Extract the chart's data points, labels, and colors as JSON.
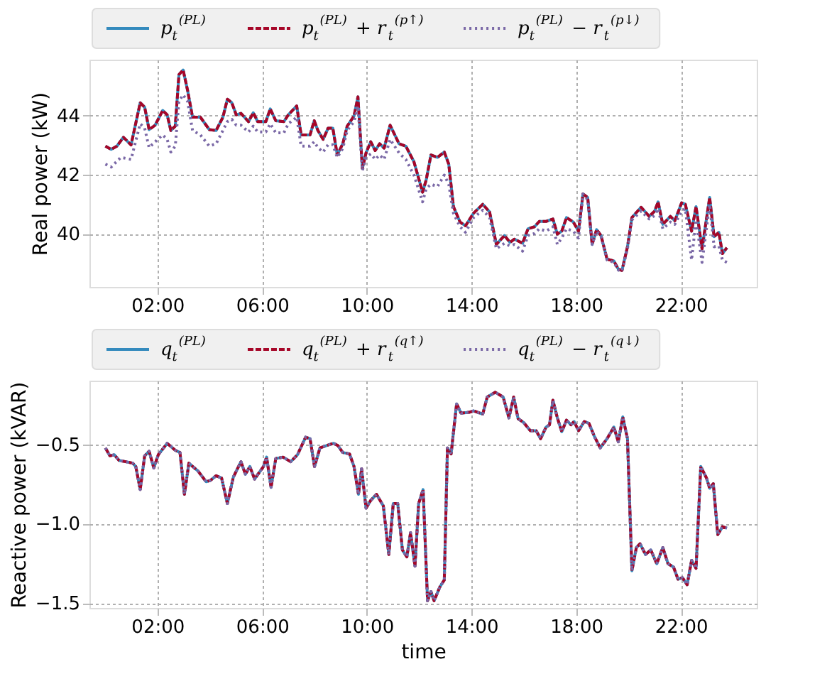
{
  "chart_data": [
    {
      "type": "line",
      "ylabel": "Real power (kW)",
      "xlim": [
        -0.6,
        24.9
      ],
      "ylim": [
        38.2,
        45.9
      ],
      "yticks": [
        40,
        42,
        44
      ],
      "xticks": [
        {
          "value": 2,
          "label": "02:00"
        },
        {
          "value": 6,
          "label": "06:00"
        },
        {
          "value": 10,
          "label": "10:00"
        },
        {
          "value": 14,
          "label": "14:00"
        },
        {
          "value": 18,
          "label": "18:00"
        },
        {
          "value": 22,
          "label": "22:00"
        }
      ],
      "grid": true,
      "legend": "top",
      "series": [
        {
          "name": "p$_{t}$$^{(PL)}$",
          "color": "#348abd",
          "line_style": "solid",
          "x": [
            0.01,
            0.23,
            0.45,
            0.7,
            0.99,
            1.34,
            1.51,
            1.68,
            1.91,
            2.2,
            2.37,
            2.51,
            2.68,
            2.82,
            2.98,
            3.15,
            3.34,
            3.64,
            3.98,
            4.24,
            4.5,
            4.67,
            4.84,
            5.01,
            5.19,
            5.48,
            5.66,
            5.83,
            6.14,
            6.31,
            6.52,
            6.83,
            7.0,
            7.32,
            7.49,
            7.83,
            7.99,
            8.13,
            8.33,
            8.52,
            8.7,
            8.87,
            9.08,
            9.25,
            9.51,
            9.66,
            9.83,
            9.97,
            10.15,
            10.32,
            10.49,
            10.66,
            10.89,
            11.23,
            11.49,
            11.8,
            12.13,
            12.27,
            12.45,
            12.7,
            12.96,
            13.13,
            13.31,
            13.56,
            13.77,
            14.08,
            14.43,
            14.69,
            14.95,
            15.26,
            15.47,
            15.64,
            15.95,
            16.16,
            16.41,
            16.59,
            16.85,
            17.11,
            17.28,
            17.45,
            17.63,
            17.89,
            18.09,
            18.26,
            18.44,
            18.61,
            18.78,
            18.95,
            19.18,
            19.44,
            19.61,
            19.75,
            19.96,
            20.13,
            20.48,
            20.79,
            21.0,
            21.13,
            21.31,
            21.6,
            21.77,
            22.03,
            22.17,
            22.41,
            22.58,
            22.81,
            23.1,
            23.27,
            23.45,
            23.59,
            23.76
          ],
          "values": [
            42.97,
            42.86,
            42.97,
            43.27,
            43.01,
            44.44,
            44.29,
            43.53,
            43.68,
            44.18,
            44.03,
            43.5,
            43.65,
            45.39,
            45.55,
            44.86,
            43.95,
            43.95,
            43.53,
            43.5,
            43.95,
            44.56,
            44.44,
            44.03,
            44.08,
            43.8,
            44.1,
            43.8,
            43.8,
            44.23,
            43.83,
            43.8,
            44.03,
            44.33,
            43.35,
            43.35,
            43.83,
            43.5,
            43.2,
            43.58,
            43.58,
            42.67,
            43.05,
            43.65,
            43.99,
            44.64,
            42.21,
            42.74,
            43.12,
            42.82,
            43.05,
            42.9,
            43.68,
            43.05,
            42.97,
            42.44,
            41.41,
            41.83,
            42.67,
            42.59,
            42.77,
            42.36,
            40.92,
            40.4,
            40.27,
            40.7,
            41.0,
            40.74,
            39.64,
            39.94,
            39.71,
            39.82,
            39.68,
            40.17,
            40.24,
            40.42,
            40.42,
            40.5,
            39.99,
            40.09,
            40.55,
            40.4,
            40.09,
            41.35,
            41.23,
            39.64,
            40.14,
            39.94,
            39.14,
            39.08,
            38.8,
            38.76,
            39.56,
            40.55,
            40.9,
            40.59,
            40.77,
            41.08,
            40.32,
            40.59,
            40.44,
            41.05,
            41.0,
            40.09,
            40.92,
            39.49,
            41.23,
            39.9,
            40.05,
            39.33,
            39.53
          ]
        },
        {
          "name": "p$_{t}$$^{(PL)}$ + r$_{t}$$^{(p↑)}$",
          "color": "#a60628",
          "line_style": "dashed",
          "x": [
            0.01,
            0.23,
            0.45,
            0.7,
            0.99,
            1.34,
            1.51,
            1.68,
            1.91,
            2.2,
            2.37,
            2.51,
            2.68,
            2.82,
            2.98,
            3.15,
            3.34,
            3.64,
            3.98,
            4.24,
            4.5,
            4.67,
            4.84,
            5.01,
            5.19,
            5.48,
            5.66,
            5.83,
            6.14,
            6.31,
            6.52,
            6.83,
            7.0,
            7.32,
            7.49,
            7.83,
            7.99,
            8.13,
            8.33,
            8.52,
            8.7,
            8.87,
            9.08,
            9.25,
            9.51,
            9.66,
            9.83,
            9.97,
            10.15,
            10.32,
            10.49,
            10.66,
            10.89,
            11.23,
            11.49,
            11.8,
            12.13,
            12.27,
            12.45,
            12.7,
            12.96,
            13.13,
            13.31,
            13.56,
            13.77,
            14.08,
            14.43,
            14.69,
            14.95,
            15.26,
            15.47,
            15.64,
            15.95,
            16.16,
            16.41,
            16.59,
            16.85,
            17.11,
            17.28,
            17.45,
            17.63,
            17.89,
            18.09,
            18.26,
            18.44,
            18.61,
            18.78,
            18.95,
            19.18,
            19.44,
            19.61,
            19.75,
            19.96,
            20.13,
            20.48,
            20.79,
            21.0,
            21.13,
            21.31,
            21.6,
            21.77,
            22.03,
            22.17,
            22.41,
            22.58,
            22.81,
            23.1,
            23.27,
            23.45,
            23.59,
            23.76
          ],
          "values": [
            42.97,
            42.86,
            42.97,
            43.27,
            43.01,
            44.44,
            44.29,
            43.53,
            43.68,
            44.18,
            44.03,
            43.5,
            43.65,
            45.39,
            45.55,
            44.86,
            43.95,
            43.95,
            43.53,
            43.5,
            43.95,
            44.56,
            44.44,
            44.03,
            44.08,
            43.8,
            44.1,
            43.8,
            43.8,
            44.23,
            43.83,
            43.8,
            44.03,
            44.33,
            43.35,
            43.35,
            43.83,
            43.5,
            43.2,
            43.58,
            43.58,
            42.67,
            43.05,
            43.65,
            43.99,
            44.64,
            42.21,
            42.74,
            43.12,
            42.82,
            43.05,
            42.9,
            43.68,
            43.05,
            42.97,
            42.44,
            41.41,
            41.83,
            42.67,
            42.59,
            42.77,
            42.36,
            40.92,
            40.4,
            40.27,
            40.7,
            41.0,
            40.74,
            39.64,
            39.94,
            39.71,
            39.82,
            39.68,
            40.17,
            40.24,
            40.42,
            40.42,
            40.5,
            39.99,
            40.09,
            40.55,
            40.4,
            40.09,
            41.35,
            41.23,
            39.64,
            40.14,
            39.94,
            39.14,
            39.08,
            38.8,
            38.76,
            39.56,
            40.55,
            40.9,
            40.59,
            40.77,
            41.08,
            40.32,
            40.59,
            40.44,
            41.05,
            41.0,
            40.09,
            40.92,
            39.49,
            41.23,
            39.9,
            40.05,
            39.33,
            39.53
          ]
        },
        {
          "name": "p$_{t}$$^{(PL)}$ − r$_{t}$$^{(p↓)}$",
          "color": "#7a68a6",
          "line_style": "dotted",
          "x": [
            0.01,
            0.23,
            0.6,
            0.99,
            1.34,
            1.51,
            1.68,
            1.91,
            2.2,
            2.37,
            2.51,
            2.68,
            2.82,
            2.98,
            3.15,
            3.34,
            3.64,
            3.98,
            4.24,
            4.5,
            4.67,
            4.84,
            5.01,
            5.19,
            5.48,
            5.66,
            5.83,
            6.14,
            6.31,
            6.52,
            6.83,
            7.0,
            7.32,
            7.49,
            7.83,
            7.99,
            8.13,
            8.33,
            8.52,
            8.7,
            8.87,
            9.08,
            9.25,
            9.51,
            9.66,
            9.83,
            9.97,
            10.15,
            10.32,
            10.49,
            10.66,
            10.89,
            11.23,
            11.49,
            11.8,
            12.13,
            12.27,
            12.45,
            12.7,
            12.96,
            13.13,
            13.31,
            13.56,
            13.77,
            14.08,
            14.43,
            14.69,
            14.95,
            15.26,
            15.47,
            15.64,
            15.95,
            16.16,
            16.41,
            16.59,
            16.85,
            17.11,
            17.28,
            17.45,
            17.63,
            17.89,
            18.09,
            18.26,
            18.44,
            18.61,
            18.78,
            18.95,
            19.18,
            19.44,
            19.61,
            19.75,
            19.96,
            20.13,
            20.48,
            20.79,
            21.0,
            21.13,
            21.31,
            21.6,
            21.77,
            22.03,
            22.17,
            22.41,
            22.58,
            22.81,
            23.1,
            23.27,
            23.45,
            23.59,
            23.76
          ],
          "values": [
            42.36,
            42.26,
            42.59,
            42.52,
            43.73,
            43.58,
            42.92,
            43.12,
            43.35,
            43.2,
            42.77,
            42.97,
            44.49,
            44.71,
            44.49,
            43.5,
            43.35,
            42.97,
            43.05,
            43.5,
            43.8,
            43.88,
            43.68,
            43.68,
            43.45,
            43.65,
            43.45,
            43.45,
            43.73,
            43.42,
            43.42,
            43.73,
            43.95,
            42.97,
            42.97,
            43.12,
            42.92,
            42.77,
            43.02,
            43.02,
            42.59,
            42.89,
            43.5,
            43.8,
            44.33,
            42.14,
            42.59,
            42.71,
            42.52,
            42.67,
            42.52,
            43.2,
            42.74,
            42.52,
            41.99,
            41.08,
            41.53,
            41.68,
            41.6,
            41.99,
            41.68,
            40.7,
            40.24,
            40.05,
            40.55,
            40.8,
            40.55,
            39.49,
            39.68,
            39.59,
            39.64,
            39.41,
            39.94,
            40.01,
            40.17,
            40.09,
            40.24,
            39.64,
            39.86,
            40.17,
            40.09,
            39.86,
            41.35,
            41.15,
            39.64,
            40.09,
            39.9,
            39.11,
            39.03,
            38.77,
            38.73,
            39.49,
            40.47,
            40.77,
            40.5,
            40.62,
            40.85,
            40.17,
            40.4,
            40.32,
            40.77,
            40.85,
            39.11,
            40.47,
            39.03,
            41.0,
            39.56,
            39.59,
            39.11,
            39.03
          ]
        }
      ]
    },
    {
      "type": "line",
      "xlabel": "time",
      "ylabel": "Reactive power (kVAR)",
      "xlim": [
        -0.6,
        24.9
      ],
      "ylim": [
        -1.53,
        -0.1
      ],
      "yticks": [
        {
          "value": -1.5,
          "label": "−1.5"
        },
        {
          "value": -1.0,
          "label": "−1.0"
        },
        {
          "value": -0.5,
          "label": "−0.5"
        }
      ],
      "xticks": [
        {
          "value": 2,
          "label": "02:00"
        },
        {
          "value": 6,
          "label": "06:00"
        },
        {
          "value": 10,
          "label": "10:00"
        },
        {
          "value": 14,
          "label": "14:00"
        },
        {
          "value": 18,
          "label": "18:00"
        },
        {
          "value": 22,
          "label": "22:00"
        }
      ],
      "grid": true,
      "legend": "top",
      "series": [
        {
          "name": "q$_{t}$$^{(PL)}$",
          "color": "#348abd",
          "line_style": "solid",
          "x": [
            0.01,
            0.18,
            0.35,
            0.53,
            0.79,
            1.05,
            1.17,
            1.34,
            1.51,
            1.68,
            1.86,
            2.03,
            2.37,
            2.68,
            2.86,
            3.03,
            3.2,
            3.55,
            3.86,
            4.03,
            4.24,
            4.45,
            4.67,
            4.9,
            5.19,
            5.36,
            5.53,
            5.71,
            6.05,
            6.17,
            6.34,
            6.52,
            6.8,
            7.09,
            7.35,
            7.66,
            7.83,
            8.0,
            8.21,
            8.56,
            8.73,
            8.9,
            9.08,
            9.34,
            9.51,
            9.68,
            9.8,
            9.97,
            10.15,
            10.37,
            10.63,
            10.84,
            11.01,
            11.18,
            11.36,
            11.53,
            11.67,
            11.84,
            11.98,
            12.15,
            12.32,
            12.45,
            12.57,
            12.79,
            12.96,
            13.08,
            13.22,
            13.43,
            13.6,
            13.91,
            14.08,
            14.43,
            14.6,
            14.91,
            15.21,
            15.43,
            15.61,
            15.78,
            15.99,
            16.25,
            16.47,
            16.64,
            16.85,
            16.98,
            17.11,
            17.28,
            17.45,
            17.63,
            17.8,
            17.92,
            18.09,
            18.31,
            18.49,
            18.71,
            18.92,
            19.18,
            19.44,
            19.61,
            19.78,
            19.96,
            20.13,
            20.3,
            20.44,
            20.65,
            20.85,
            21.08,
            21.31,
            21.51,
            21.72,
            21.89,
            22.06,
            22.24,
            22.41,
            22.58,
            22.76,
            22.98,
            23.1,
            23.24,
            23.41,
            23.59,
            23.76
          ],
          "values": [
            -0.523,
            -0.573,
            -0.566,
            -0.602,
            -0.61,
            -0.619,
            -0.64,
            -0.785,
            -0.573,
            -0.544,
            -0.649,
            -0.566,
            -0.494,
            -0.538,
            -0.552,
            -0.815,
            -0.619,
            -0.669,
            -0.736,
            -0.727,
            -0.698,
            -0.713,
            -0.873,
            -0.706,
            -0.61,
            -0.689,
            -0.64,
            -0.719,
            -0.64,
            -0.581,
            -0.771,
            -0.59,
            -0.581,
            -0.61,
            -0.566,
            -0.456,
            -0.465,
            -0.64,
            -0.523,
            -0.503,
            -0.494,
            -0.509,
            -0.552,
            -0.561,
            -0.64,
            -0.815,
            -0.654,
            -0.902,
            -0.853,
            -0.815,
            -0.888,
            -1.194,
            -0.873,
            -0.873,
            -1.165,
            -1.209,
            -1.056,
            -1.267,
            -0.873,
            -0.785,
            -1.485,
            -1.427,
            -1.485,
            -1.398,
            -1.354,
            -0.523,
            -0.561,
            -0.246,
            -0.304,
            -0.299,
            -0.29,
            -0.31,
            -0.203,
            -0.173,
            -0.203,
            -0.334,
            -0.203,
            -0.339,
            -0.363,
            -0.415,
            -0.415,
            -0.465,
            -0.392,
            -0.378,
            -0.223,
            -0.334,
            -0.421,
            -0.348,
            -0.378,
            -0.357,
            -0.415,
            -0.357,
            -0.369,
            -0.456,
            -0.523,
            -0.465,
            -0.392,
            -0.485,
            -0.328,
            -0.465,
            -1.296,
            -1.15,
            -1.126,
            -1.194,
            -1.165,
            -1.252,
            -1.15,
            -1.252,
            -1.273,
            -1.349,
            -1.34,
            -1.384,
            -1.231,
            -1.281,
            -0.64,
            -0.713,
            -0.777,
            -0.748,
            -1.069,
            -1.019,
            -1.028
          ]
        },
        {
          "name": "q$_{t}$$^{(PL)}$ + r$_{t}$$^{(q↑)}$",
          "color": "#a60628",
          "line_style": "dashed",
          "x": [
            0.01,
            0.18,
            0.35,
            0.53,
            0.79,
            1.05,
            1.17,
            1.34,
            1.51,
            1.68,
            1.86,
            2.03,
            2.37,
            2.68,
            2.86,
            3.03,
            3.2,
            3.55,
            3.86,
            4.03,
            4.24,
            4.45,
            4.67,
            4.9,
            5.19,
            5.36,
            5.53,
            5.71,
            6.05,
            6.17,
            6.34,
            6.52,
            6.8,
            7.09,
            7.35,
            7.66,
            7.83,
            8.0,
            8.21,
            8.56,
            8.73,
            8.9,
            9.08,
            9.34,
            9.51,
            9.68,
            9.8,
            9.97,
            10.15,
            10.37,
            10.63,
            10.84,
            11.01,
            11.18,
            11.36,
            11.53,
            11.67,
            11.84,
            11.98,
            12.15,
            12.32,
            12.45,
            12.57,
            12.79,
            12.96,
            13.08,
            13.22,
            13.43,
            13.6,
            13.91,
            14.08,
            14.43,
            14.6,
            14.91,
            15.21,
            15.43,
            15.61,
            15.78,
            15.99,
            16.25,
            16.47,
            16.64,
            16.85,
            16.98,
            17.11,
            17.28,
            17.45,
            17.63,
            17.8,
            17.92,
            18.09,
            18.31,
            18.49,
            18.71,
            18.92,
            19.18,
            19.44,
            19.61,
            19.78,
            19.96,
            20.13,
            20.3,
            20.44,
            20.65,
            20.85,
            21.08,
            21.31,
            21.51,
            21.72,
            21.89,
            22.06,
            22.24,
            22.41,
            22.58,
            22.76,
            22.98,
            23.1,
            23.24,
            23.41,
            23.59,
            23.76
          ],
          "values": [
            -0.523,
            -0.573,
            -0.566,
            -0.602,
            -0.61,
            -0.619,
            -0.64,
            -0.785,
            -0.573,
            -0.544,
            -0.649,
            -0.566,
            -0.494,
            -0.538,
            -0.552,
            -0.815,
            -0.619,
            -0.669,
            -0.736,
            -0.727,
            -0.698,
            -0.713,
            -0.873,
            -0.706,
            -0.61,
            -0.689,
            -0.64,
            -0.719,
            -0.64,
            -0.581,
            -0.771,
            -0.59,
            -0.581,
            -0.61,
            -0.566,
            -0.456,
            -0.465,
            -0.64,
            -0.523,
            -0.503,
            -0.494,
            -0.509,
            -0.552,
            -0.561,
            -0.64,
            -0.815,
            -0.654,
            -0.902,
            -0.853,
            -0.815,
            -0.888,
            -1.194,
            -0.873,
            -0.873,
            -1.165,
            -1.209,
            -1.056,
            -1.267,
            -0.873,
            -0.785,
            -1.485,
            -1.427,
            -1.485,
            -1.398,
            -1.354,
            -0.523,
            -0.561,
            -0.246,
            -0.304,
            -0.299,
            -0.29,
            -0.31,
            -0.203,
            -0.173,
            -0.203,
            -0.334,
            -0.203,
            -0.339,
            -0.363,
            -0.415,
            -0.415,
            -0.465,
            -0.392,
            -0.378,
            -0.223,
            -0.334,
            -0.421,
            -0.348,
            -0.378,
            -0.357,
            -0.415,
            -0.357,
            -0.369,
            -0.456,
            -0.523,
            -0.465,
            -0.392,
            -0.485,
            -0.328,
            -0.465,
            -1.296,
            -1.15,
            -1.126,
            -1.194,
            -1.165,
            -1.252,
            -1.15,
            -1.252,
            -1.273,
            -1.349,
            -1.34,
            -1.384,
            -1.231,
            -1.281,
            -0.64,
            -0.713,
            -0.777,
            -0.748,
            -1.069,
            -1.019,
            -1.028
          ]
        },
        {
          "name": "q$_{t}$$^{(PL)}$ − r$_{t}$$^{(q↓)}$",
          "color": "#7a68a6",
          "line_style": "dotted",
          "x": [
            0.01,
            0.18,
            0.35,
            0.53,
            0.79,
            1.05,
            1.17,
            1.34,
            1.51,
            1.68,
            1.86,
            2.03,
            2.37,
            2.68,
            2.86,
            3.03,
            3.2,
            3.55,
            3.86,
            4.03,
            4.24,
            4.45,
            4.67,
            4.9,
            5.19,
            5.36,
            5.53,
            5.71,
            6.05,
            6.17,
            6.34,
            6.52,
            6.8,
            7.09,
            7.35,
            7.66,
            7.83,
            8.0,
            8.21,
            8.56,
            8.73,
            8.9,
            9.08,
            9.34,
            9.51,
            9.68,
            9.8,
            9.97,
            10.15,
            10.37,
            10.63,
            10.84,
            11.01,
            11.18,
            11.36,
            11.53,
            11.67,
            11.84,
            11.98,
            12.15,
            12.32,
            12.45,
            12.57,
            12.79,
            12.96,
            13.08,
            13.22,
            13.43,
            13.6,
            13.91,
            14.08,
            14.43,
            14.6,
            14.91,
            15.21,
            15.43,
            15.61,
            15.78,
            15.99,
            16.25,
            16.47,
            16.64,
            16.85,
            16.98,
            17.11,
            17.28,
            17.45,
            17.63,
            17.8,
            17.92,
            18.09,
            18.31,
            18.49,
            18.71,
            18.92,
            19.18,
            19.44,
            19.61,
            19.78,
            19.96,
            20.13,
            20.3,
            20.44,
            20.65,
            20.85,
            21.08,
            21.31,
            21.51,
            21.72,
            21.89,
            22.06,
            22.24,
            22.41,
            22.58,
            22.76,
            22.98,
            23.1,
            23.24,
            23.41,
            23.59,
            23.76
          ],
          "values": [
            -0.523,
            -0.573,
            -0.566,
            -0.602,
            -0.61,
            -0.619,
            -0.64,
            -0.785,
            -0.573,
            -0.544,
            -0.649,
            -0.566,
            -0.494,
            -0.538,
            -0.552,
            -0.815,
            -0.619,
            -0.669,
            -0.736,
            -0.727,
            -0.698,
            -0.713,
            -0.873,
            -0.706,
            -0.61,
            -0.689,
            -0.64,
            -0.719,
            -0.64,
            -0.581,
            -0.771,
            -0.59,
            -0.581,
            -0.61,
            -0.566,
            -0.456,
            -0.465,
            -0.64,
            -0.523,
            -0.503,
            -0.494,
            -0.509,
            -0.552,
            -0.561,
            -0.64,
            -0.815,
            -0.654,
            -0.902,
            -0.853,
            -0.815,
            -0.888,
            -1.194,
            -0.873,
            -0.873,
            -1.165,
            -1.209,
            -1.056,
            -1.267,
            -0.873,
            -0.785,
            -1.485,
            -1.427,
            -1.485,
            -1.398,
            -1.354,
            -0.523,
            -0.561,
            -0.246,
            -0.304,
            -0.299,
            -0.29,
            -0.31,
            -0.203,
            -0.173,
            -0.203,
            -0.334,
            -0.203,
            -0.339,
            -0.363,
            -0.415,
            -0.415,
            -0.465,
            -0.392,
            -0.378,
            -0.223,
            -0.334,
            -0.421,
            -0.348,
            -0.378,
            -0.357,
            -0.415,
            -0.357,
            -0.369,
            -0.456,
            -0.523,
            -0.465,
            -0.392,
            -0.485,
            -0.328,
            -0.465,
            -1.296,
            -1.15,
            -1.126,
            -1.194,
            -1.165,
            -1.252,
            -1.15,
            -1.252,
            -1.273,
            -1.349,
            -1.34,
            -1.384,
            -1.231,
            -1.281,
            -0.64,
            -0.713,
            -0.777,
            -0.748,
            -1.069,
            -1.019,
            -1.028
          ]
        }
      ]
    }
  ]
}
